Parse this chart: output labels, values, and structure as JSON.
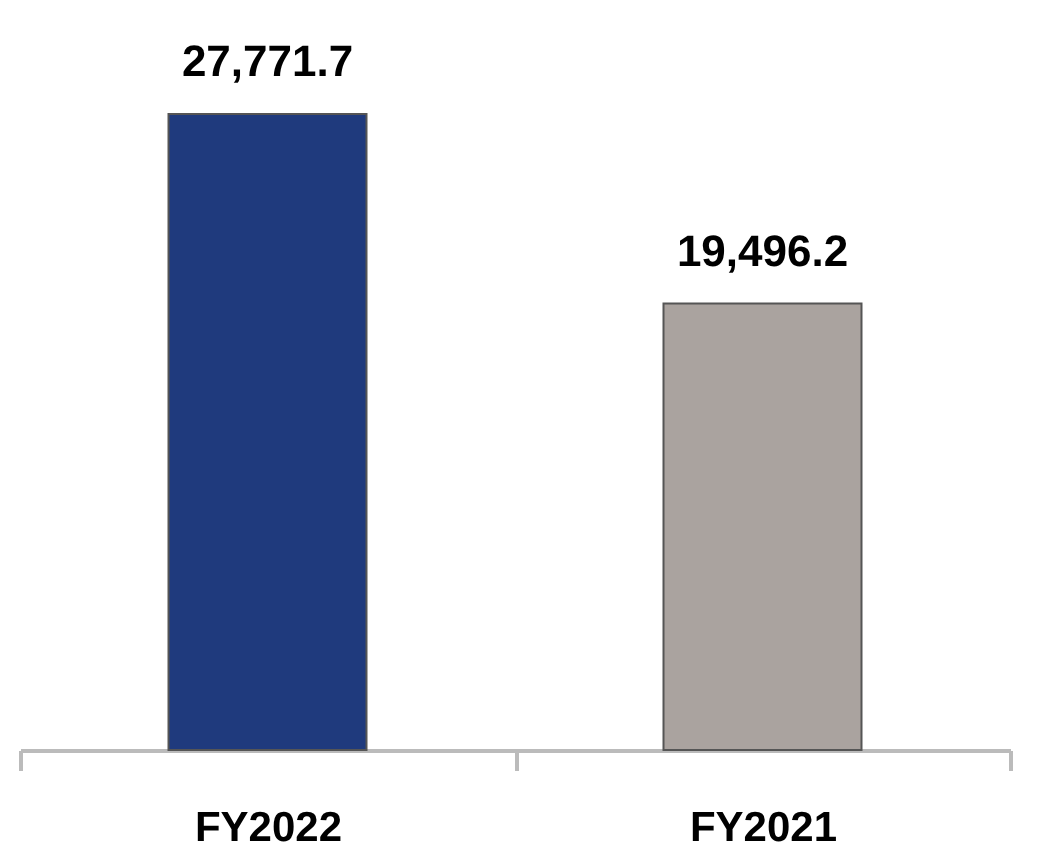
{
  "chart_data": {
    "type": "bar",
    "categories": [
      "FY2022",
      "FY2021"
    ],
    "values": [
      27771.7,
      19496.2
    ],
    "colors": [
      "#1f3a7d",
      "#aaa39f"
    ],
    "value_labels": [
      "27,771.7",
      "19,496.2"
    ]
  }
}
